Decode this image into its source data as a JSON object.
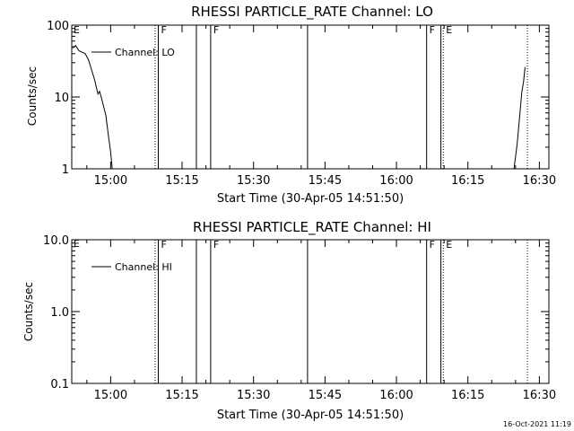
{
  "footer": {
    "timestamp": "16-Oct-2021 11:19"
  },
  "chart_data": [
    {
      "type": "line",
      "title": "RHESSI PARTICLE_RATE Channel: LO",
      "xlabel": "Start Time (30-Apr-05 14:51:50)",
      "ylabel": "Counts/sec",
      "yscale": "log",
      "xlim": [
        "14:51:50",
        "16:32:00"
      ],
      "ylim": [
        1,
        100
      ],
      "x_ticks": [
        "15:00",
        "15:15",
        "15:30",
        "15:45",
        "16:00",
        "16:15",
        "16:30"
      ],
      "y_ticks": [
        "1",
        "10",
        "100"
      ],
      "legend": {
        "position": "top-left",
        "entries": [
          "Channel: LO"
        ]
      },
      "series": [
        {
          "name": "Channel: LO",
          "segments": [
            [
              {
                "x": "14:52:00",
                "y": 48
              },
              {
                "x": "14:52:40",
                "y": 52
              },
              {
                "x": "14:53:20",
                "y": 44
              },
              {
                "x": "14:54:00",
                "y": 42
              },
              {
                "x": "14:54:40",
                "y": 40
              },
              {
                "x": "14:55:20",
                "y": 33
              },
              {
                "x": "14:56:00",
                "y": 24
              },
              {
                "x": "14:56:40",
                "y": 17
              },
              {
                "x": "14:57:20",
                "y": 11
              },
              {
                "x": "14:57:40",
                "y": 12
              },
              {
                "x": "14:58:00",
                "y": 10
              },
              {
                "x": "14:58:30",
                "y": 7.5
              },
              {
                "x": "14:59:00",
                "y": 5.5
              },
              {
                "x": "14:59:30",
                "y": 3
              },
              {
                "x": "15:00:00",
                "y": 1.7
              },
              {
                "x": "15:00:20",
                "y": 1
              }
            ],
            [
              {
                "x": "16:24:40",
                "y": 1
              },
              {
                "x": "16:25:20",
                "y": 2.2
              },
              {
                "x": "16:25:50",
                "y": 5
              },
              {
                "x": "16:26:20",
                "y": 12
              },
              {
                "x": "16:26:40",
                "y": 16
              },
              {
                "x": "16:27:00",
                "y": 26
              }
            ]
          ]
        }
      ],
      "markers": [
        {
          "time": "15:09:20",
          "style": "dotted"
        },
        {
          "time": "15:10:00",
          "style": "solid",
          "label": "F"
        },
        {
          "time": "15:18:00",
          "style": "solid"
        },
        {
          "time": "15:21:00",
          "style": "solid",
          "label": "F"
        },
        {
          "time": "15:41:20",
          "style": "solid"
        },
        {
          "time": "16:06:20",
          "style": "solid",
          "label": "F"
        },
        {
          "time": "16:09:20",
          "style": "solid"
        },
        {
          "time": "16:09:50",
          "style": "dotted",
          "label": "E"
        },
        {
          "time": "16:27:30",
          "style": "dotted"
        }
      ],
      "corner_label": "E"
    },
    {
      "type": "line",
      "title": "RHESSI PARTICLE_RATE Channel: HI",
      "xlabel": "Start Time (30-Apr-05 14:51:50)",
      "ylabel": "Counts/sec",
      "yscale": "log",
      "xlim": [
        "14:51:50",
        "16:32:00"
      ],
      "ylim": [
        0.1,
        10
      ],
      "x_ticks": [
        "15:00",
        "15:15",
        "15:30",
        "15:45",
        "16:00",
        "16:15",
        "16:30"
      ],
      "y_ticks": [
        "0.1",
        "1.0",
        "10.0"
      ],
      "legend": {
        "position": "top-left",
        "entries": [
          "Channel: HI"
        ]
      },
      "series": [
        {
          "name": "Channel: HI",
          "segments": []
        }
      ],
      "markers": [
        {
          "time": "15:09:20",
          "style": "dotted"
        },
        {
          "time": "15:10:00",
          "style": "solid",
          "label": "F"
        },
        {
          "time": "15:18:00",
          "style": "solid"
        },
        {
          "time": "15:21:00",
          "style": "solid",
          "label": "F"
        },
        {
          "time": "15:41:20",
          "style": "solid"
        },
        {
          "time": "16:06:20",
          "style": "solid",
          "label": "F"
        },
        {
          "time": "16:09:20",
          "style": "solid"
        },
        {
          "time": "16:09:50",
          "style": "dotted",
          "label": "E"
        },
        {
          "time": "16:27:30",
          "style": "dotted"
        }
      ],
      "corner_label": "E"
    }
  ]
}
